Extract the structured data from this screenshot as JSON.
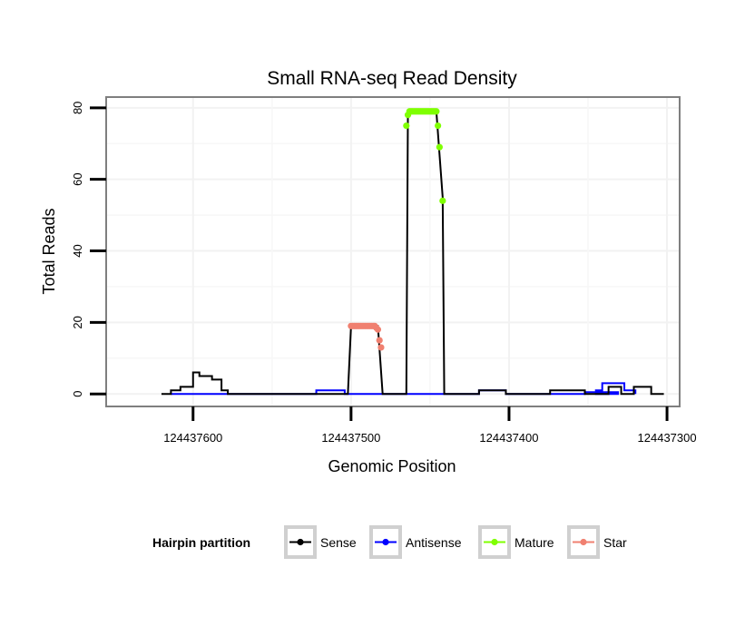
{
  "chart_data": {
    "type": "line",
    "title": "Small RNA-seq Read Density",
    "xlabel": "Genomic Position",
    "ylabel": "Total Reads",
    "x_reversed": true,
    "xlim": [
      124437655,
      124437292
    ],
    "ylim": [
      -3.5,
      83
    ],
    "xticks": [
      124437600,
      124437500,
      124437400,
      124437300
    ],
    "xtick_labels": [
      "124437600",
      "124437500",
      "124437400",
      "124437300"
    ],
    "yticks": [
      0,
      20,
      40,
      60,
      80
    ],
    "ytick_labels": [
      "0",
      "20",
      "40",
      "60",
      "80"
    ],
    "grid": true,
    "legend": {
      "title": "Hairpin partition",
      "position": "bottom",
      "entries": [
        "Sense",
        "Antisense",
        "Mature",
        "Star"
      ]
    },
    "series": [
      {
        "name": "Sense",
        "color": "#000000",
        "style": "step-line",
        "points": [
          [
            124437620,
            0
          ],
          [
            124437614,
            0
          ],
          [
            124437614,
            1
          ],
          [
            124437608,
            1
          ],
          [
            124437608,
            2
          ],
          [
            124437600,
            2
          ],
          [
            124437600,
            6
          ],
          [
            124437596,
            6
          ],
          [
            124437596,
            5
          ],
          [
            124437588,
            5
          ],
          [
            124437588,
            4
          ],
          [
            124437582,
            4
          ],
          [
            124437582,
            1
          ],
          [
            124437578,
            1
          ],
          [
            124437578,
            0
          ],
          [
            124437502,
            0
          ],
          [
            124437500,
            19
          ],
          [
            124437483,
            19
          ],
          [
            124437480,
            0
          ],
          [
            124437465,
            0
          ],
          [
            124437464,
            79
          ],
          [
            124437446,
            79
          ],
          [
            124437442,
            55
          ],
          [
            124437441,
            0
          ],
          [
            124437419,
            0
          ],
          [
            124437419,
            1
          ],
          [
            124437402,
            1
          ],
          [
            124437402,
            0
          ],
          [
            124437374,
            0
          ],
          [
            124437374,
            1
          ],
          [
            124437352,
            1
          ],
          [
            124437352,
            0
          ],
          [
            124437337,
            0
          ],
          [
            124437337,
            2
          ],
          [
            124437329,
            2
          ],
          [
            124437329,
            0
          ],
          [
            124437321,
            0
          ],
          [
            124437321,
            2
          ],
          [
            124437310,
            2
          ],
          [
            124437310,
            0
          ],
          [
            124437302,
            0
          ]
        ]
      },
      {
        "name": "Antisense",
        "color": "#0000ff",
        "style": "step-line",
        "points": [
          [
            124437614,
            0
          ],
          [
            124437522,
            0
          ],
          [
            124437522,
            1
          ],
          [
            124437504,
            1
          ],
          [
            124437504,
            0
          ],
          [
            124437419,
            0
          ],
          [
            124437419,
            1
          ],
          [
            124437402,
            1
          ],
          [
            124437402,
            0
          ],
          [
            124437352,
            0
          ],
          [
            124437352,
            0.5
          ],
          [
            124437331,
            0.5
          ],
          [
            124437331,
            0
          ],
          [
            124437345,
            0
          ],
          [
            124437345,
            1
          ],
          [
            124437341,
            1
          ],
          [
            124437341,
            3
          ],
          [
            124437327,
            3
          ],
          [
            124437327,
            1
          ],
          [
            124437320,
            1
          ],
          [
            124437320,
            0
          ]
        ]
      },
      {
        "name": "Mature",
        "color": "#7fff00",
        "style": "points",
        "points": [
          [
            124437465,
            75
          ],
          [
            124437464,
            78
          ],
          [
            124437463,
            79
          ],
          [
            124437462,
            79
          ],
          [
            124437461,
            79
          ],
          [
            124437460,
            79
          ],
          [
            124437459,
            79
          ],
          [
            124437458,
            79
          ],
          [
            124437457,
            79
          ],
          [
            124437456,
            79
          ],
          [
            124437455,
            79
          ],
          [
            124437454,
            79
          ],
          [
            124437453,
            79
          ],
          [
            124437452,
            79
          ],
          [
            124437451,
            79
          ],
          [
            124437450,
            79
          ],
          [
            124437449,
            79
          ],
          [
            124437448,
            79
          ],
          [
            124437447,
            79
          ],
          [
            124437446,
            79
          ],
          [
            124437445,
            75
          ],
          [
            124437444,
            69
          ],
          [
            124437442,
            54
          ]
        ]
      },
      {
        "name": "Star",
        "color": "#f08070",
        "style": "points",
        "points": [
          [
            124437500,
            19
          ],
          [
            124437499,
            19
          ],
          [
            124437498,
            19
          ],
          [
            124437497,
            19
          ],
          [
            124437496,
            19
          ],
          [
            124437495,
            19
          ],
          [
            124437494,
            19
          ],
          [
            124437493,
            19
          ],
          [
            124437492,
            19
          ],
          [
            124437491,
            19
          ],
          [
            124437490,
            19
          ],
          [
            124437489,
            19
          ],
          [
            124437488,
            19
          ],
          [
            124437487,
            19
          ],
          [
            124437486,
            19
          ],
          [
            124437485,
            19
          ],
          [
            124437484,
            18.5
          ],
          [
            124437483,
            18
          ],
          [
            124437482,
            15
          ],
          [
            124437481,
            13
          ]
        ]
      }
    ]
  }
}
